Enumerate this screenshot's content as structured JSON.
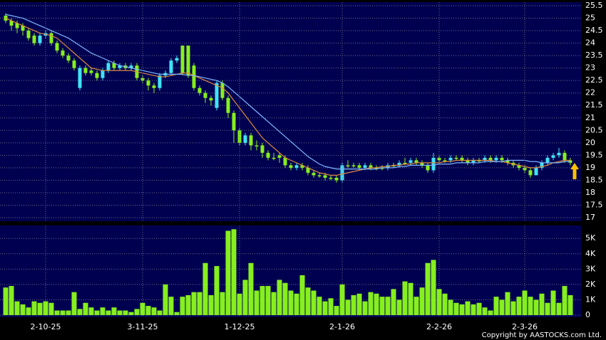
{
  "chart_data": [
    {
      "type": "candlestick",
      "open": [
        25.1,
        24.9,
        24.8,
        24.7,
        24.5,
        24.3,
        24.0,
        24.3,
        24.4,
        24.0,
        23.7,
        23.5,
        23.3,
        22.2,
        23.0,
        22.9,
        22.8,
        22.6,
        22.9,
        23.2,
        23.0,
        23.1,
        23.0,
        23.1,
        22.6,
        22.5,
        22.3,
        22.2,
        22.7,
        22.8,
        23.3,
        23.9,
        23.9,
        23.1,
        22.2,
        22.0,
        21.8,
        21.4,
        22.4,
        21.8,
        21.2,
        20.5,
        20.0,
        20.3,
        19.9,
        19.9,
        19.6,
        19.4,
        19.5,
        19.4,
        19.1,
        19.0,
        19.1,
        19.0,
        18.8,
        18.7,
        18.7,
        18.6,
        18.6,
        18.5,
        19.1,
        19.1,
        19.1,
        19.0,
        19.1,
        19.0,
        19.0,
        19.0,
        19.1,
        19.1,
        19.2,
        19.2,
        19.3,
        19.2,
        19.1,
        18.9,
        19.4,
        19.3,
        19.3,
        19.4,
        19.4,
        19.3,
        19.2,
        19.3,
        19.3,
        19.4,
        19.3,
        19.4,
        19.3,
        19.2,
        19.1,
        19.0,
        18.9,
        18.7,
        19.0,
        19.2,
        19.4,
        19.5,
        19.6,
        19.3
      ],
      "high": [
        25.2,
        25.0,
        24.9,
        24.8,
        24.6,
        24.4,
        24.4,
        24.5,
        24.5,
        24.1,
        23.8,
        23.6,
        23.4,
        23.1,
        23.1,
        23.0,
        22.9,
        23.0,
        23.3,
        23.3,
        23.2,
        23.2,
        23.2,
        23.2,
        22.7,
        22.6,
        22.4,
        22.8,
        22.9,
        23.4,
        23.5,
        23.9,
        23.9,
        23.2,
        22.3,
        22.1,
        21.9,
        22.5,
        22.5,
        21.9,
        21.3,
        20.6,
        20.4,
        20.4,
        20.1,
        20.0,
        19.7,
        19.6,
        19.6,
        19.5,
        19.2,
        19.2,
        19.2,
        19.1,
        18.9,
        18.8,
        18.8,
        18.7,
        18.7,
        19.2,
        19.3,
        19.2,
        19.2,
        19.2,
        19.2,
        19.1,
        19.1,
        19.2,
        19.2,
        19.3,
        19.4,
        19.4,
        19.4,
        19.3,
        19.2,
        19.6,
        19.5,
        19.4,
        19.5,
        19.5,
        19.5,
        19.4,
        19.4,
        19.4,
        19.5,
        19.5,
        19.5,
        19.5,
        19.4,
        19.3,
        19.2,
        19.1,
        19.0,
        19.1,
        19.3,
        19.5,
        19.6,
        19.8,
        19.7,
        19.4
      ],
      "low": [
        24.8,
        24.5,
        24.4,
        24.3,
        24.1,
        23.9,
        23.9,
        24.2,
        23.9,
        23.6,
        23.4,
        23.2,
        22.9,
        22.1,
        22.7,
        22.7,
        22.5,
        22.5,
        22.8,
        22.9,
        22.9,
        22.9,
        22.9,
        22.5,
        22.4,
        22.1,
        22.0,
        22.1,
        22.6,
        22.7,
        23.2,
        22.7,
        22.6,
        22.1,
        21.9,
        21.6,
        21.5,
        21.3,
        21.7,
        21.0,
        20.0,
        19.9,
        19.9,
        19.7,
        19.7,
        19.4,
        19.3,
        19.3,
        19.2,
        19.0,
        18.9,
        18.9,
        18.9,
        18.7,
        18.6,
        18.6,
        18.5,
        18.5,
        18.4,
        18.4,
        19.0,
        19.0,
        18.9,
        18.9,
        18.9,
        18.9,
        18.9,
        18.9,
        19.0,
        19.0,
        19.1,
        19.1,
        19.1,
        19.0,
        18.8,
        18.8,
        19.2,
        19.2,
        19.2,
        19.3,
        19.2,
        19.1,
        19.1,
        19.2,
        19.2,
        19.2,
        19.2,
        19.2,
        19.1,
        19.0,
        18.9,
        18.8,
        18.6,
        18.7,
        18.9,
        19.1,
        19.3,
        19.4,
        19.2,
        19.1
      ],
      "close": [
        24.9,
        24.7,
        24.6,
        24.5,
        24.2,
        24.0,
        24.3,
        24.4,
        24.0,
        23.7,
        23.5,
        23.3,
        23.0,
        23.0,
        22.8,
        22.8,
        22.6,
        22.9,
        23.2,
        23.0,
        23.1,
        23.0,
        23.1,
        22.6,
        22.5,
        22.3,
        22.2,
        22.7,
        22.8,
        23.3,
        23.4,
        22.8,
        22.7,
        22.2,
        22.0,
        21.8,
        21.7,
        22.4,
        21.8,
        21.2,
        20.5,
        20.0,
        20.3,
        19.9,
        19.9,
        19.6,
        19.4,
        19.4,
        19.4,
        19.1,
        19.0,
        19.1,
        19.0,
        18.8,
        18.7,
        18.7,
        18.6,
        18.6,
        18.5,
        19.1,
        19.1,
        19.1,
        19.0,
        19.1,
        19.0,
        19.0,
        19.0,
        19.1,
        19.1,
        19.2,
        19.2,
        19.3,
        19.2,
        19.1,
        18.9,
        19.4,
        19.3,
        19.3,
        19.4,
        19.4,
        19.3,
        19.2,
        19.3,
        19.3,
        19.4,
        19.3,
        19.4,
        19.3,
        19.2,
        19.1,
        19.0,
        18.9,
        18.7,
        19.0,
        19.2,
        19.4,
        19.5,
        19.6,
        19.3,
        19.2
      ],
      "up_color": "#3fe3f5",
      "down_color": "#86ef1e",
      "series": [
        {
          "color": "#e08a3c",
          "values": [
            25.0,
            24.9,
            24.8,
            24.7,
            24.6,
            24.5,
            24.4,
            24.35,
            24.3,
            24.2,
            24.0,
            23.8,
            23.6,
            23.4,
            23.2,
            23.0,
            22.95,
            22.9,
            22.9,
            22.9,
            22.9,
            22.9,
            22.9,
            22.85,
            22.8,
            22.75,
            22.7,
            22.65,
            22.65,
            22.7,
            22.75,
            22.8,
            22.8,
            22.7,
            22.6,
            22.5,
            22.4,
            22.3,
            22.2,
            22.0,
            21.7,
            21.4,
            21.1,
            20.8,
            20.5,
            20.2,
            20.0,
            19.8,
            19.6,
            19.4,
            19.3,
            19.2,
            19.1,
            19.0,
            18.9,
            18.8,
            18.75,
            18.7,
            18.7,
            18.75,
            18.8,
            18.85,
            18.9,
            18.95,
            19.0,
            19.0,
            19.05,
            19.05,
            19.1,
            19.1,
            19.15,
            19.15,
            19.2,
            19.2,
            19.2,
            19.2,
            19.2,
            19.25,
            19.25,
            19.3,
            19.3,
            19.3,
            19.3,
            19.3,
            19.3,
            19.3,
            19.25,
            19.25,
            19.2,
            19.15,
            19.1,
            19.05,
            19.0,
            19.0,
            19.05,
            19.1,
            19.2,
            19.25,
            19.3,
            19.3
          ]
        },
        {
          "color": "#7eb6ff",
          "values": [
            25.15,
            25.1,
            25.05,
            25.0,
            24.9,
            24.8,
            24.7,
            24.6,
            24.5,
            24.4,
            24.3,
            24.2,
            24.05,
            23.9,
            23.75,
            23.6,
            23.5,
            23.4,
            23.3,
            23.2,
            23.1,
            23.05,
            23.0,
            22.95,
            22.9,
            22.85,
            22.8,
            22.75,
            22.75,
            22.75,
            22.75,
            22.75,
            22.7,
            22.7,
            22.65,
            22.6,
            22.55,
            22.5,
            22.4,
            22.25,
            22.05,
            21.85,
            21.65,
            21.45,
            21.25,
            21.05,
            20.85,
            20.65,
            20.45,
            20.25,
            20.05,
            19.85,
            19.65,
            19.45,
            19.3,
            19.15,
            19.05,
            19.0,
            18.95,
            18.95,
            18.95,
            18.95,
            18.95,
            18.95,
            18.95,
            18.95,
            19.0,
            19.0,
            19.0,
            19.05,
            19.05,
            19.1,
            19.1,
            19.1,
            19.1,
            19.1,
            19.15,
            19.15,
            19.15,
            19.2,
            19.2,
            19.2,
            19.2,
            19.2,
            19.25,
            19.25,
            19.25,
            19.25,
            19.3,
            19.3,
            19.3,
            19.3,
            19.25,
            19.25,
            19.2,
            19.2,
            19.2,
            19.2,
            19.25,
            19.25
          ]
        }
      ],
      "ylim": [
        17,
        25.5
      ],
      "yticks": [
        17,
        17.5,
        18,
        18.5,
        19,
        19.5,
        20,
        20.5,
        21,
        21.5,
        22,
        22.5,
        23,
        23.5,
        24,
        24.5,
        25,
        25.5
      ],
      "grid": true
    },
    {
      "type": "bar",
      "categories": [
        null,
        null,
        null,
        null,
        null,
        null,
        null,
        "2-10-25",
        null,
        null,
        null,
        null,
        null,
        null,
        null,
        null,
        null,
        null,
        null,
        null,
        null,
        null,
        null,
        null,
        "3-11-25",
        null,
        null,
        null,
        null,
        null,
        null,
        null,
        null,
        null,
        null,
        null,
        null,
        null,
        null,
        null,
        null,
        "1-12-25",
        null,
        null,
        null,
        null,
        null,
        null,
        null,
        null,
        null,
        null,
        null,
        null,
        null,
        null,
        null,
        null,
        null,
        "2-1-26",
        null,
        null,
        null,
        null,
        null,
        null,
        null,
        null,
        null,
        null,
        null,
        null,
        null,
        null,
        null,
        null,
        "2-2-26",
        null,
        null,
        null,
        null,
        null,
        null,
        null,
        null,
        null,
        null,
        null,
        null,
        null,
        null,
        "2-3-26",
        null,
        null,
        null,
        null,
        null,
        null,
        null,
        null
      ],
      "values": [
        1800,
        1900,
        900,
        700,
        500,
        900,
        800,
        900,
        800,
        300,
        300,
        300,
        1500,
        400,
        800,
        500,
        300,
        500,
        300,
        500,
        300,
        300,
        200,
        400,
        800,
        600,
        500,
        300,
        2000,
        1200,
        200,
        1200,
        1300,
        1500,
        1500,
        3400,
        1300,
        3200,
        1500,
        5500,
        5600,
        1400,
        2300,
        3400,
        1600,
        1900,
        1900,
        1500,
        2300,
        2100,
        1600,
        1400,
        2600,
        1800,
        1600,
        1200,
        900,
        1100,
        600,
        2000,
        1000,
        1300,
        1400,
        900,
        1500,
        1400,
        1200,
        1200,
        1700,
        1000,
        2200,
        2100,
        1200,
        1800,
        3400,
        3600,
        1700,
        1400,
        1000,
        800,
        700,
        900,
        700,
        800,
        500,
        300,
        1200,
        1000,
        1500,
        900,
        1200,
        1600,
        1200,
        1000,
        1400,
        800,
        1600,
        800,
        1900,
        1300
      ],
      "color": "#86ef1e",
      "ylim": [
        0,
        5800
      ],
      "yticks": [
        0,
        {
          "value": 1000,
          "label": "1K"
        },
        {
          "value": 2000,
          "label": "2K"
        },
        {
          "value": 3000,
          "label": "3K"
        },
        {
          "value": 4000,
          "label": "4K"
        },
        {
          "value": 5000,
          "label": "5K"
        }
      ],
      "grid": true
    }
  ],
  "copyright": "Copyright by AASTOCKS.com Ltd."
}
